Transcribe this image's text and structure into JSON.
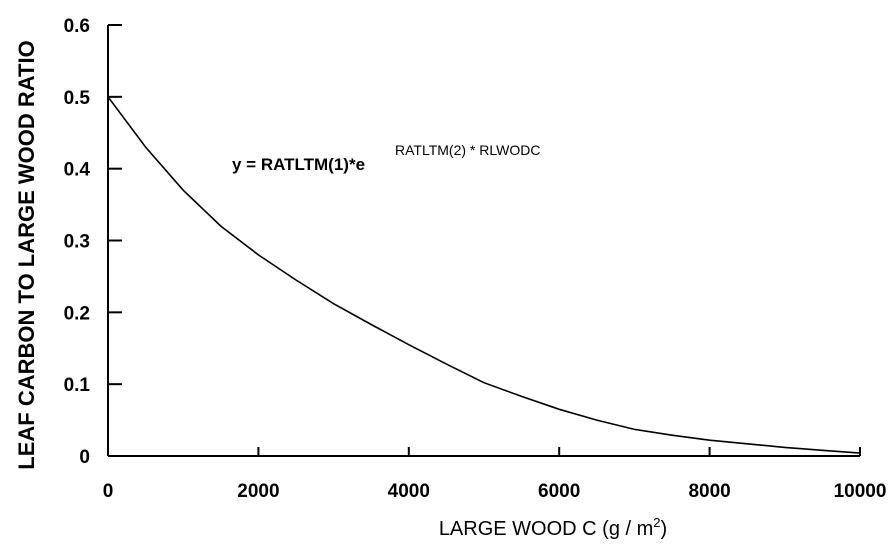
{
  "chart_data": {
    "type": "line",
    "title": "",
    "xlabel": "LARGE WOOD C (g / m",
    "xlabel_sup": "2",
    "xlabel_end": ")",
    "ylabel": "LEAF CARBON TO LARGE WOOD RATIO",
    "xlim": [
      0,
      10000
    ],
    "ylim": [
      0,
      0.6
    ],
    "x_ticks": [
      0,
      2000,
      4000,
      6000,
      8000,
      10000
    ],
    "x_tick_labels": [
      "0",
      "2000",
      "4000",
      "6000",
      "8000",
      "10000"
    ],
    "y_ticks": [
      0,
      0.1,
      0.2,
      0.3,
      0.4,
      0.5,
      0.6
    ],
    "y_tick_labels": [
      "0",
      "0.1",
      "0.2",
      "0.3",
      "0.4",
      "0.5",
      "0.6"
    ],
    "grid": false,
    "legend": "none",
    "annotation": {
      "main": "y = RATLTM(1)*e",
      "superscript": "RATLTM(2) * RLWODC"
    },
    "series": [
      {
        "x": [
          0,
          500,
          1000,
          1500,
          2000,
          2500,
          3000,
          3500,
          4000,
          4500,
          5000,
          5500,
          6000,
          6500,
          7000,
          7500,
          8000,
          8500,
          9000,
          9500,
          10000
        ],
        "y": [
          0.5,
          0.43,
          0.37,
          0.32,
          0.28,
          0.245,
          0.212,
          0.183,
          0.155,
          0.128,
          0.102,
          0.083,
          0.065,
          0.05,
          0.037,
          0.029,
          0.022,
          0.017,
          0.012,
          0.008,
          0.004
        ]
      }
    ]
  }
}
